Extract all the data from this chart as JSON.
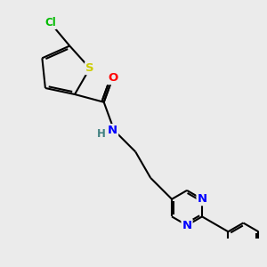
{
  "background_color": "#ebebeb",
  "atom_colors": {
    "C": "#000000",
    "N": "#0000ff",
    "O": "#ff0000",
    "S": "#cccc00",
    "Cl": "#00bb00",
    "H": "#408080"
  },
  "bond_color": "#000000",
  "bond_width": 1.5,
  "font_size": 8.5,
  "title": ""
}
